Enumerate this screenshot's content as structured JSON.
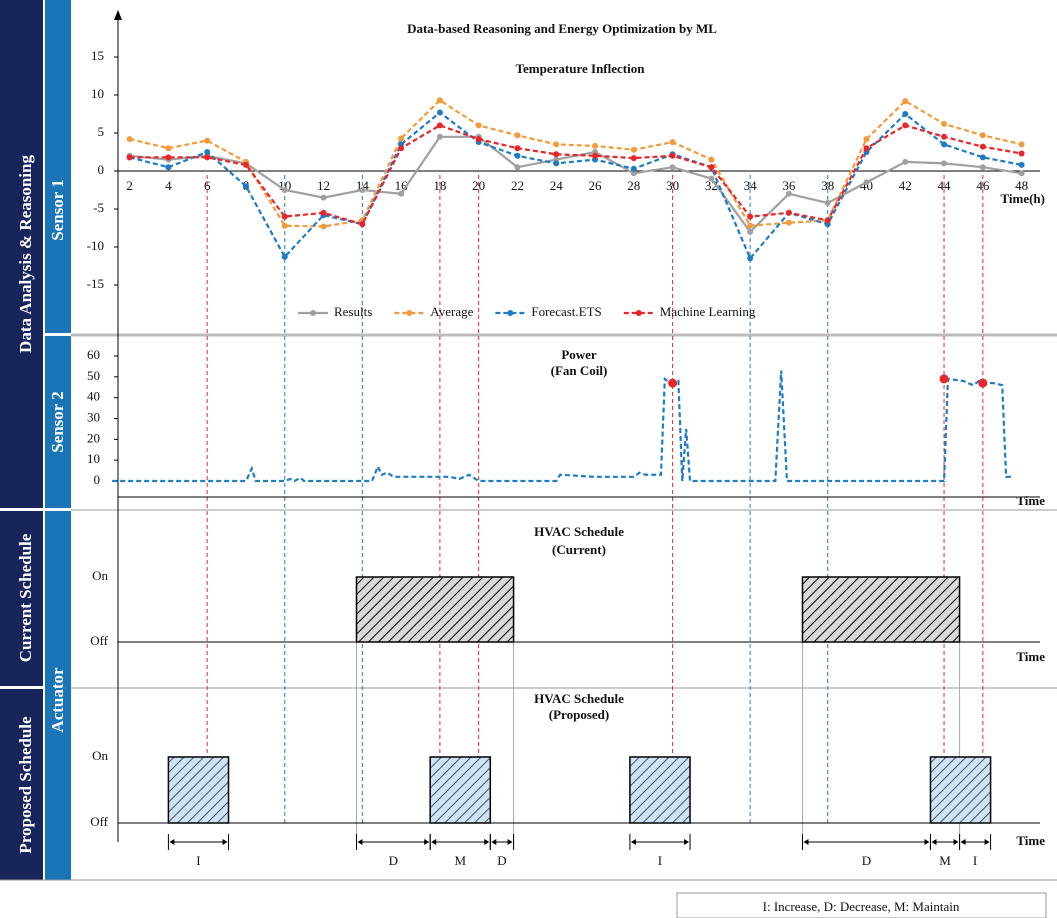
{
  "sidebar": {
    "group1": "Data Analysis & Reasoning",
    "group2": "Current Schedule",
    "group3": "Proposed Schedule",
    "sensor1": "Sensor 1",
    "sensor2": "Sensor 2",
    "actuator": "Actuator"
  },
  "note": "I: Increase, D: Decrease, M: Maintain",
  "guides": [
    {
      "color": "#e8262a",
      "x": [
        6,
        18,
        20,
        30,
        44,
        46
      ]
    },
    {
      "color": "#1f7cc4",
      "x": [
        10,
        14,
        34,
        38
      ]
    }
  ],
  "chart_data": [
    {
      "type": "line",
      "title": "Data-based Reasoning and Energy Optimization by ML",
      "subtitle": "Temperature Inflection",
      "xlabel": "Time(h)",
      "x": [
        2,
        4,
        6,
        8,
        10,
        12,
        14,
        16,
        18,
        20,
        22,
        24,
        26,
        28,
        30,
        32,
        34,
        36,
        38,
        40,
        42,
        44,
        46,
        48
      ],
      "xticks": [
        2,
        4,
        6,
        8,
        10,
        12,
        14,
        16,
        18,
        20,
        22,
        24,
        26,
        28,
        30,
        32,
        34,
        36,
        38,
        40,
        42,
        44,
        46,
        48
      ],
      "xlim": [
        1.4,
        49
      ],
      "ylim": [
        -20,
        20
      ],
      "yticks": [
        -15,
        -10,
        -5,
        0,
        5,
        10,
        15
      ],
      "series": [
        {
          "name": "Results",
          "color": "#a0a0a0",
          "values": [
            2,
            1.5,
            2,
            1,
            -2.5,
            -3.5,
            -2.5,
            -3,
            4.5,
            4.5,
            0.5,
            1.5,
            2.5,
            -0.3,
            0.5,
            -1,
            -8,
            -3,
            -4.2,
            -1.5,
            1.2,
            1,
            0.5,
            -0.3
          ]
        },
        {
          "name": "Average",
          "color": "#f39a3c",
          "values": [
            4.2,
            3,
            4,
            1.2,
            -7.2,
            -7.3,
            -6.5,
            4.3,
            9.3,
            6,
            4.7,
            3.5,
            3.3,
            2.8,
            3.8,
            1.5,
            -7.2,
            -6.8,
            -6.5,
            4.2,
            9.2,
            6.2,
            4.7,
            3.5
          ]
        },
        {
          "name": "Forecast.ETS",
          "color": "#1f7cc4",
          "values": [
            1.8,
            0.5,
            2.5,
            -2,
            -11.3,
            -5.8,
            -7,
            3.5,
            7.7,
            3.8,
            2,
            1,
            1.5,
            0.3,
            2.2,
            0.5,
            -11.5,
            -5.5,
            -7,
            2.5,
            7.5,
            3.5,
            1.8,
            0.8
          ]
        },
        {
          "name": "Machine Learning",
          "color": "#e8262a",
          "values": [
            1.8,
            1.8,
            1.8,
            0.8,
            -6,
            -5.5,
            -7,
            3,
            6,
            4.2,
            3,
            2.2,
            2,
            1.7,
            2,
            0.5,
            -6,
            -5.5,
            -6.5,
            3,
            6,
            4.5,
            3.2,
            2.3
          ]
        }
      ]
    },
    {
      "type": "line",
      "title": "Power",
      "subtitle": "(Fan Coil)",
      "xlabel": "Time",
      "xlim": [
        1.4,
        49
      ],
      "ylim": [
        0,
        60
      ],
      "yticks": [
        0,
        10,
        20,
        30,
        40,
        50,
        60
      ],
      "x": [
        1.1,
        8,
        8.3,
        8.5,
        10,
        10.3,
        10.5,
        10.8,
        11,
        14.5,
        14.8,
        15,
        15.3,
        15.6,
        18.5,
        19,
        19.5,
        20,
        24,
        24.2,
        26,
        28,
        28.3,
        28.6,
        29.4,
        29.6,
        29.9,
        30.3,
        30.5,
        30.7,
        30.9,
        35.3,
        35.6,
        35.9,
        44,
        44.2,
        45,
        45.5,
        45.8,
        46,
        46.5,
        47,
        47.2,
        47.5
      ],
      "series": [
        {
          "color": "#1f7cc4",
          "values": [
            0,
            0,
            6,
            0,
            0,
            1,
            0,
            1.5,
            0,
            0,
            7,
            3,
            4,
            2,
            2,
            1,
            3,
            0,
            0,
            3,
            2,
            2,
            4,
            3,
            3,
            49,
            47,
            48,
            0,
            25,
            0,
            0,
            53,
            0,
            0,
            49,
            48,
            46,
            48,
            47,
            47,
            46,
            2,
            2
          ]
        }
      ],
      "markers": {
        "color": "#e8262a",
        "x": [
          30,
          44,
          46
        ],
        "values": [
          47,
          49,
          47
        ]
      }
    },
    {
      "type": "schedule",
      "title": "HVAC Schedule",
      "subtitle": "(Current)",
      "xlabel": "Time",
      "ylabels": [
        "On",
        "Off"
      ],
      "xlim": [
        1.4,
        49
      ],
      "blocks": [
        {
          "start": 13.7,
          "end": 21.8
        },
        {
          "start": 36.7,
          "end": 44.8
        }
      ]
    },
    {
      "type": "schedule",
      "title": "HVAC Schedule",
      "subtitle": "(Proposed)",
      "xlabel": "Time",
      "ylabels": [
        "On",
        "Off"
      ],
      "xlim": [
        1.4,
        49
      ],
      "blocks": [
        {
          "start": 4.0,
          "end": 7.1
        },
        {
          "start": 17.5,
          "end": 20.6
        },
        {
          "start": 27.8,
          "end": 30.9
        },
        {
          "start": 43.3,
          "end": 46.4
        }
      ],
      "intervals": [
        {
          "label": "I",
          "start": 4.0,
          "end": 7.1
        },
        {
          "label": "D",
          "start": 13.7,
          "end": 17.5
        },
        {
          "label": "M",
          "start": 17.5,
          "end": 20.6
        },
        {
          "label": "D",
          "start": 20.6,
          "end": 21.8
        },
        {
          "label": "I",
          "start": 27.8,
          "end": 30.9
        },
        {
          "label": "D",
          "start": 36.7,
          "end": 43.3
        },
        {
          "label": "M",
          "start": 43.3,
          "end": 44.8
        },
        {
          "label": "I",
          "start": 44.8,
          "end": 46.4
        }
      ]
    }
  ]
}
